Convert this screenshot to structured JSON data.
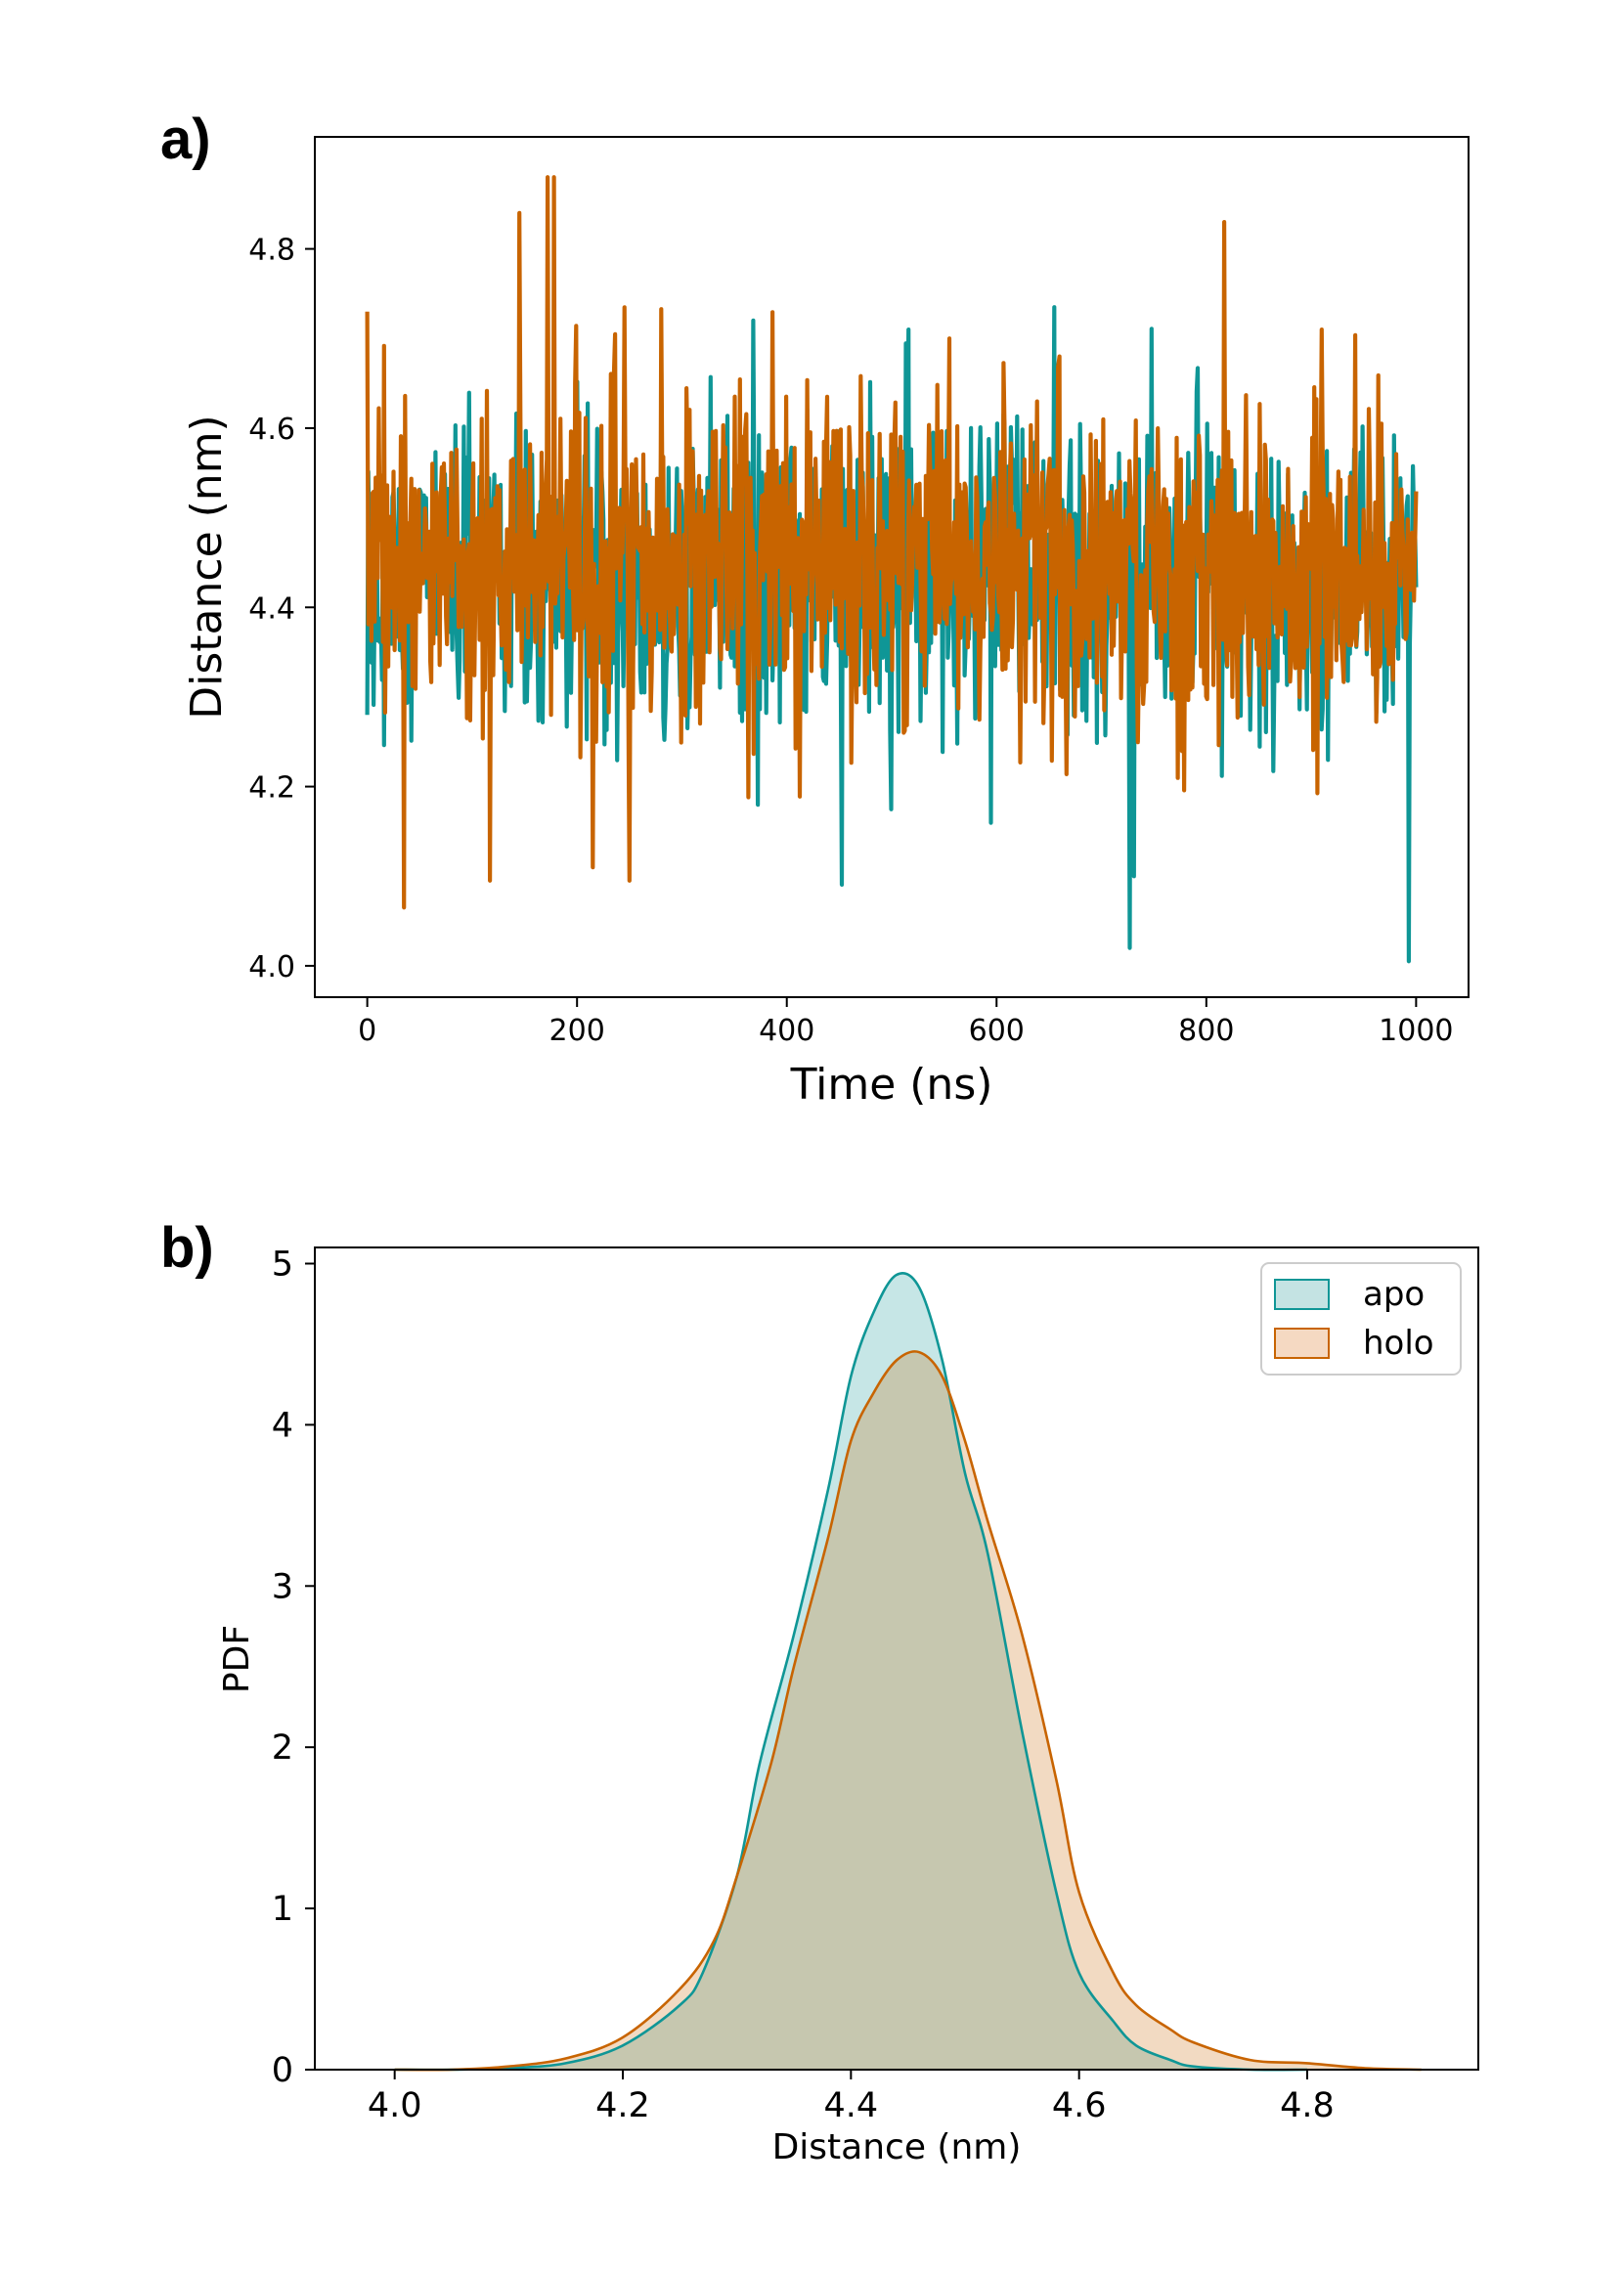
{
  "colors": {
    "apo": "#0f9696",
    "holo": "#c86400",
    "apo_fill": "#c4e3e3",
    "holo_fill": "#f5d9c2",
    "overlap_fill": "#c3c3aa"
  },
  "chart_data": [
    {
      "panel_label": "a)",
      "type": "line",
      "xlabel": "Time (ns)",
      "ylabel": "Distance (nm)",
      "xlim": [
        -50,
        1050
      ],
      "ylim": [
        3.965,
        4.925
      ],
      "xticks": [
        0,
        200,
        400,
        600,
        800,
        1000
      ],
      "xtick_labels": [
        "0",
        "200",
        "400",
        "600",
        "800",
        "1000"
      ],
      "yticks": [
        4.0,
        4.2,
        4.4,
        4.6,
        4.8
      ],
      "ytick_labels": [
        "4.0",
        "4.2",
        "4.4",
        "4.6",
        "4.8"
      ],
      "series": [
        {
          "name": "apo",
          "color_key": "apo",
          "mean": 4.43,
          "sd": 0.085,
          "min": 4.005,
          "max": 4.735,
          "n": 1000,
          "extremes": [
            [
              727,
              4.02
            ],
            [
              993,
              4.005
            ],
            [
              731,
              4.1
            ],
            [
              368,
              4.72
            ],
            [
              655,
              4.735
            ],
            [
              516,
              4.71
            ],
            [
              0,
              4.28
            ]
          ]
        },
        {
          "name": "holo",
          "color_key": "holo",
          "mean": 4.45,
          "sd": 0.09,
          "min": 4.065,
          "max": 4.88,
          "n": 1000,
          "extremes": [
            [
              172,
              4.88
            ],
            [
              178,
              4.88
            ],
            [
              145,
              4.84
            ],
            [
              817,
              4.83
            ],
            [
              0,
              4.73
            ],
            [
              35,
              4.065
            ],
            [
              250,
              4.095
            ],
            [
              117,
              4.095
            ],
            [
              215,
              4.11
            ],
            [
              660,
              4.68
            ],
            [
              555,
              4.7
            ],
            [
              910,
              4.71
            ]
          ]
        }
      ]
    },
    {
      "panel_label": "b)",
      "type": "area",
      "xlabel": "Distance (nm)",
      "ylabel": "PDF",
      "xlim": [
        3.93,
        4.95
      ],
      "ylim": [
        0,
        5.1
      ],
      "xticks": [
        4.0,
        4.2,
        4.4,
        4.6,
        4.8
      ],
      "xtick_labels": [
        "4.0",
        "4.2",
        "4.4",
        "4.6",
        "4.8"
      ],
      "yticks": [
        0,
        1,
        2,
        3,
        4,
        5
      ],
      "ytick_labels": [
        "0",
        "1",
        "2",
        "3",
        "4",
        "5"
      ],
      "legend": {
        "position": "top-right",
        "entries": [
          "apo",
          "holo"
        ]
      },
      "series": [
        {
          "name": "apo",
          "color_key": "apo",
          "x": [
            4.0,
            4.05,
            4.1,
            4.15,
            4.2,
            4.25,
            4.27,
            4.3,
            4.32,
            4.35,
            4.38,
            4.4,
            4.42,
            4.44,
            4.46,
            4.48,
            4.5,
            4.52,
            4.55,
            4.58,
            4.6,
            4.63,
            4.65,
            4.68,
            4.7,
            4.75,
            4.8
          ],
          "y": [
            0.0,
            0.0,
            0.01,
            0.04,
            0.15,
            0.4,
            0.6,
            1.2,
            1.9,
            2.7,
            3.6,
            4.3,
            4.7,
            4.93,
            4.85,
            4.4,
            3.7,
            3.2,
            2.1,
            1.1,
            0.6,
            0.3,
            0.15,
            0.06,
            0.02,
            0.0,
            0.0
          ]
        },
        {
          "name": "holo",
          "color_key": "holo",
          "x": [
            4.0,
            4.05,
            4.1,
            4.15,
            4.2,
            4.25,
            4.28,
            4.3,
            4.33,
            4.35,
            4.38,
            4.4,
            4.42,
            4.44,
            4.46,
            4.48,
            4.5,
            4.52,
            4.55,
            4.58,
            4.6,
            4.63,
            4.65,
            4.68,
            4.7,
            4.75,
            4.8,
            4.85,
            4.9
          ],
          "y": [
            0.0,
            0.0,
            0.02,
            0.07,
            0.2,
            0.5,
            0.8,
            1.2,
            1.9,
            2.5,
            3.3,
            3.9,
            4.2,
            4.4,
            4.45,
            4.3,
            3.9,
            3.4,
            2.7,
            1.8,
            1.1,
            0.6,
            0.4,
            0.25,
            0.17,
            0.06,
            0.04,
            0.01,
            0.0
          ]
        }
      ]
    }
  ]
}
